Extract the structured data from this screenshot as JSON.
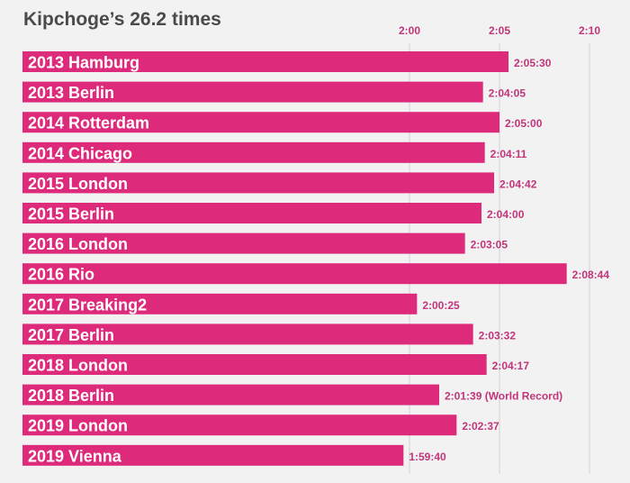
{
  "chart_data": {
    "type": "bar",
    "orientation": "horizontal",
    "title": "Kipchoge’s 26.2 times",
    "xlabel": "",
    "ylabel": "",
    "x_ticks": [
      {
        "label": "2:00",
        "minutes": 120
      },
      {
        "label": "2:05",
        "minutes": 125
      },
      {
        "label": "2:10",
        "minutes": 130
      }
    ],
    "grid": true,
    "bar_color": "#dd2a7b",
    "categories": [
      "2013 Hamburg",
      "2013 Berlin",
      "2014 Rotterdam",
      "2014 Chicago",
      "2015 London",
      "2015 Berlin",
      "2016 London",
      "2016 Rio",
      "2017 Breaking2",
      "2017 Berlin",
      "2018 London",
      "2018 Berlin",
      "2019 London",
      "2019 Vienna"
    ],
    "value_labels": [
      "2:05:30",
      "2:04:05",
      "2:05:00",
      "2:04:11",
      "2:04:42",
      "2:04:00",
      "2:03:05",
      "2:08:44",
      "2:00:25",
      "2:03:32",
      "2:04:17",
      "2:01:39 (World Record)",
      "2:02:37",
      "1:59:40"
    ],
    "values_seconds": [
      7530,
      7445,
      7500,
      7451,
      7482,
      7440,
      7385,
      7724,
      7225,
      7412,
      7457,
      7299,
      7357,
      7180
    ]
  }
}
